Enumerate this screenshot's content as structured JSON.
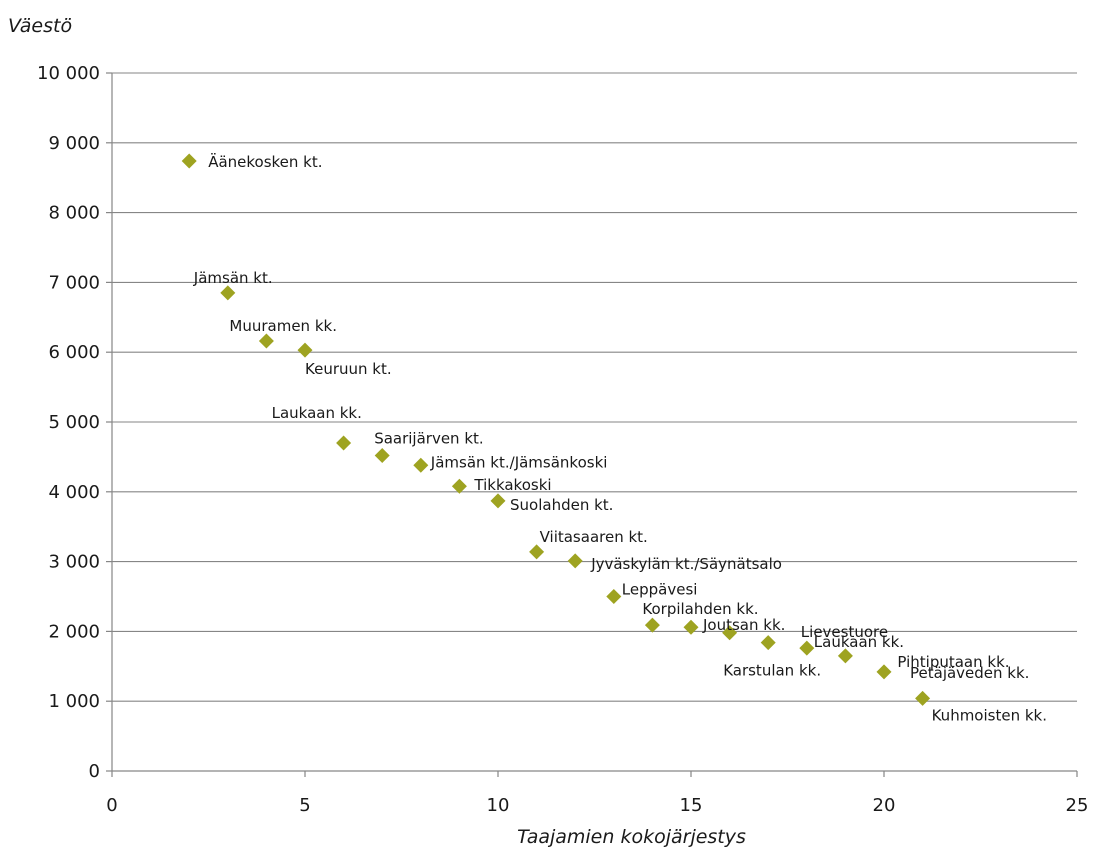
{
  "chart_data": {
    "type": "scatter",
    "xlabel": "Taajamien kokojärjestys",
    "ylabel": "Väestö",
    "xlim": [
      0,
      25
    ],
    "ylim": [
      0,
      10000
    ],
    "xticks": [
      0,
      5,
      10,
      15,
      20,
      25
    ],
    "xtick_labels": [
      "0",
      "5",
      "10",
      "15",
      "20",
      "25"
    ],
    "yticks": [
      0,
      1000,
      2000,
      3000,
      4000,
      5000,
      6000,
      7000,
      8000,
      9000,
      10000
    ],
    "ytick_labels": [
      "0",
      "1 000",
      "2 000",
      "3 000",
      "4 000",
      "5 000",
      "6 000",
      "7 000",
      "8 000",
      "9 000",
      "10 000"
    ],
    "grid": "horizontal",
    "marker": "diamond",
    "marker_color": "#9ea321",
    "points": [
      {
        "x": 2,
        "y": 8740,
        "label": "Äänekosken kt."
      },
      {
        "x": 3,
        "y": 6850,
        "label": "Jämsän kt."
      },
      {
        "x": 4,
        "y": 6160,
        "label": "Muuramen kk."
      },
      {
        "x": 5,
        "y": 6030,
        "label": "Keuruun kt."
      },
      {
        "x": 6,
        "y": 4700,
        "label": "Laukaan kk."
      },
      {
        "x": 7,
        "y": 4520,
        "label": "Saarijärven kt."
      },
      {
        "x": 8,
        "y": 4380,
        "label": "Jämsän kt./Jämsänkoski"
      },
      {
        "x": 9,
        "y": 4080,
        "label": "Tikkakoski"
      },
      {
        "x": 10,
        "y": 3870,
        "label": "Suolahden kt."
      },
      {
        "x": 11,
        "y": 3140,
        "label": "Viitasaaren kt."
      },
      {
        "x": 12,
        "y": 3010,
        "label": "Jyväskylän kt./Säynätsalo"
      },
      {
        "x": 13,
        "y": 2500,
        "label": "Leppävesi"
      },
      {
        "x": 14,
        "y": 2090,
        "label": "Korpilahden kk."
      },
      {
        "x": 15,
        "y": 2060,
        "label": "Joutsan kk."
      },
      {
        "x": 16,
        "y": 1980,
        "label": "Karstulan kk."
      },
      {
        "x": 17,
        "y": 1840,
        "label": "Lievestuore"
      },
      {
        "x": 18,
        "y": 1760,
        "label": "Laukaan kk."
      },
      {
        "x": 19,
        "y": 1650,
        "label": "Pihtiputaan kk."
      },
      {
        "x": 20,
        "y": 1420,
        "label": "Petäjäveden kk."
      },
      {
        "x": 21,
        "y": 1040,
        "label": "Kuhmoisten kk."
      }
    ]
  }
}
